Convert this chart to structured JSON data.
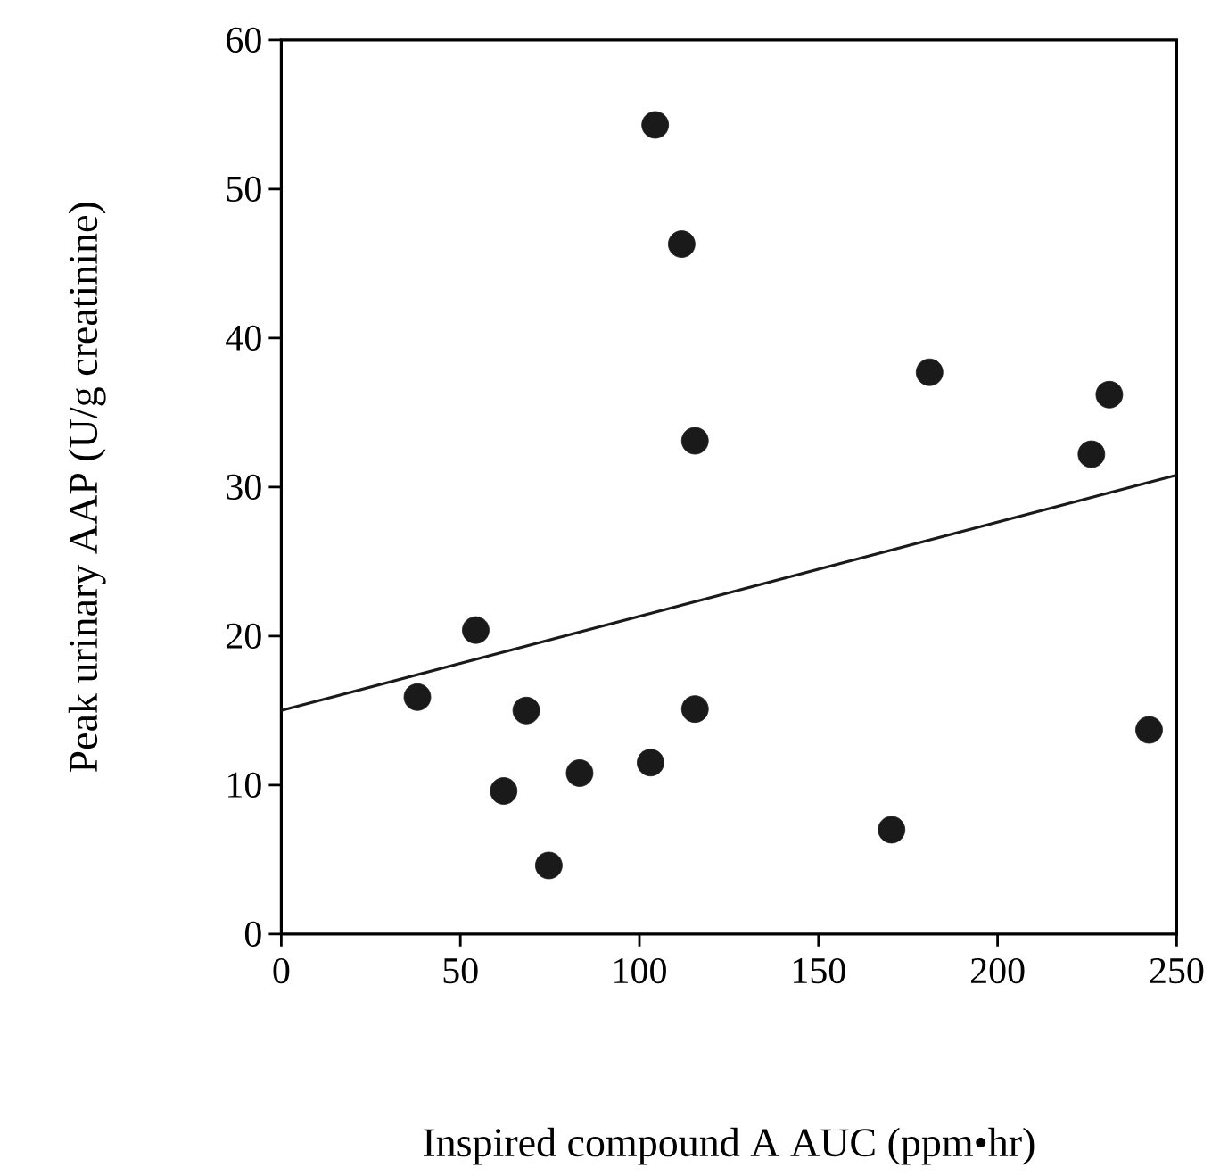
{
  "chart_data": {
    "type": "scatter",
    "xlabel": "Inspired compound A AUC (ppm•hr)",
    "ylabel": "Peak urinary AAP (U/g creatinine)",
    "xlim": [
      0,
      250
    ],
    "ylim": [
      0,
      60
    ],
    "xticks": [
      0,
      50,
      100,
      150,
      200,
      250
    ],
    "yticks": [
      0,
      10,
      20,
      30,
      40,
      50,
      60
    ],
    "grid": false,
    "series": [
      {
        "marker": "circle",
        "color": "#1a1a1a",
        "x": [
          38,
          54.3,
          62.1,
          68.4,
          74.7,
          83.3,
          103.1,
          115.5,
          170.4,
          242.3,
          104.4,
          111.8,
          115.5,
          181.0,
          231.2,
          226.2
        ],
        "values": [
          15.9,
          20.4,
          9.6,
          15.0,
          4.6,
          10.8,
          11.5,
          15.1,
          7.0,
          13.7,
          54.3,
          46.3,
          33.1,
          37.7,
          36.2,
          32.2
        ]
      },
      {
        "type": "line",
        "marker": "none",
        "color": "#1a1a1a",
        "x": [
          0,
          250
        ],
        "values": [
          15.0,
          30.8
        ]
      }
    ]
  }
}
